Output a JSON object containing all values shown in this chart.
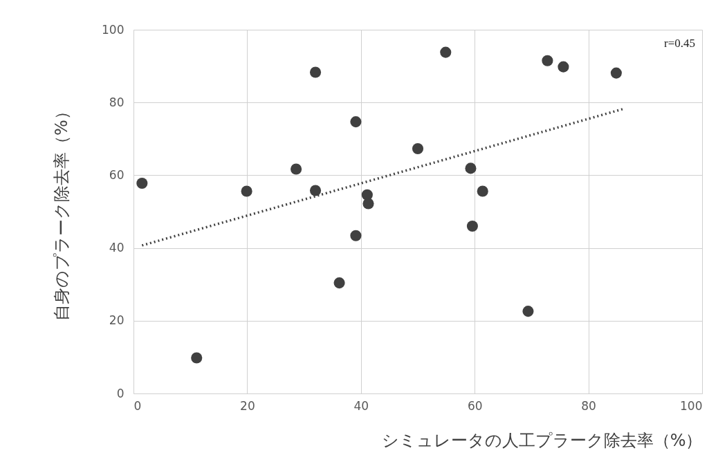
{
  "chart_data": {
    "type": "scatter",
    "xlabel": "シミュレータの人工プラーク除去率（%）",
    "ylabel": "自身のプラーク除去率（%）",
    "xlim": [
      0,
      100
    ],
    "xticks": [
      0,
      20,
      40,
      60,
      80,
      100
    ],
    "ylim": [
      0,
      100
    ],
    "yticks": [
      0,
      20,
      40,
      60,
      80,
      100
    ],
    "grid": true,
    "marker": "circle",
    "annotations": [
      "r=0.45"
    ],
    "series": [
      {
        "color": "#404040",
        "x": [
          1.5,
          11.1,
          19.9,
          28.6,
          32.0,
          32.0,
          36.2,
          39.1,
          39.1,
          41.1,
          41.3,
          50.0,
          54.9,
          59.3,
          59.6,
          61.4,
          69.4,
          72.8,
          75.6,
          84.9
        ],
        "values": [
          57.8,
          9.8,
          55.6,
          61.7,
          88.3,
          55.8,
          30.4,
          74.7,
          43.4,
          54.6,
          52.2,
          67.3,
          93.8,
          61.9,
          46.0,
          55.6,
          22.6,
          91.5,
          89.8,
          88.1
        ]
      },
      {
        "type": "line",
        "color": "#404040",
        "line_style": "dotted",
        "marker": "none",
        "x": [
          1.5,
          86.3
        ],
        "values": [
          40.7,
          78.3
        ]
      }
    ]
  }
}
